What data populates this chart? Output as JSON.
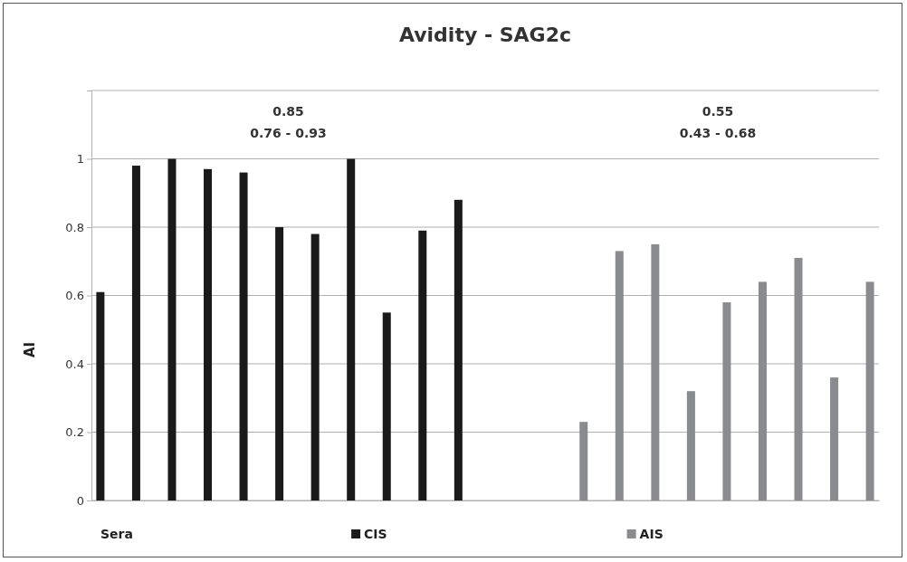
{
  "chart_data": {
    "type": "bar",
    "title": "Avidity - SAG2c",
    "xlabel": "Sera",
    "ylabel": "AI",
    "categories": [
      null,
      null,
      null,
      null,
      null,
      null,
      null,
      null,
      null,
      null,
      null,
      null,
      null,
      null,
      null,
      null,
      null,
      null,
      null,
      null,
      null,
      null
    ],
    "series": [
      {
        "name": "CIS",
        "color": "#1a1a1a",
        "values": [
          0.61,
          0.98,
          1.0,
          0.97,
          0.96,
          0.8,
          0.78,
          1.0,
          0.55,
          0.79,
          0.88,
          null,
          null,
          null,
          null,
          null,
          null,
          null,
          null,
          null,
          null,
          null
        ]
      },
      {
        "name": "AIS",
        "color": "#8a8b8f",
        "values": [
          null,
          null,
          null,
          null,
          null,
          null,
          null,
          null,
          null,
          null,
          null,
          null,
          null,
          0.23,
          0.73,
          0.75,
          0.32,
          0.58,
          0.64,
          0.71,
          0.36,
          0.64
        ]
      }
    ],
    "ylim": [
      0,
      1.2
    ],
    "yticks": [
      0,
      0.2,
      0.4,
      0.6,
      0.8,
      1,
      {
        "value": 1.2,
        "label": null
      }
    ],
    "grid": "y",
    "legend": "bottom",
    "annotations": [
      "0.85\n0.76 - 0.93",
      "0.55\n0.43 - 0.68"
    ]
  }
}
